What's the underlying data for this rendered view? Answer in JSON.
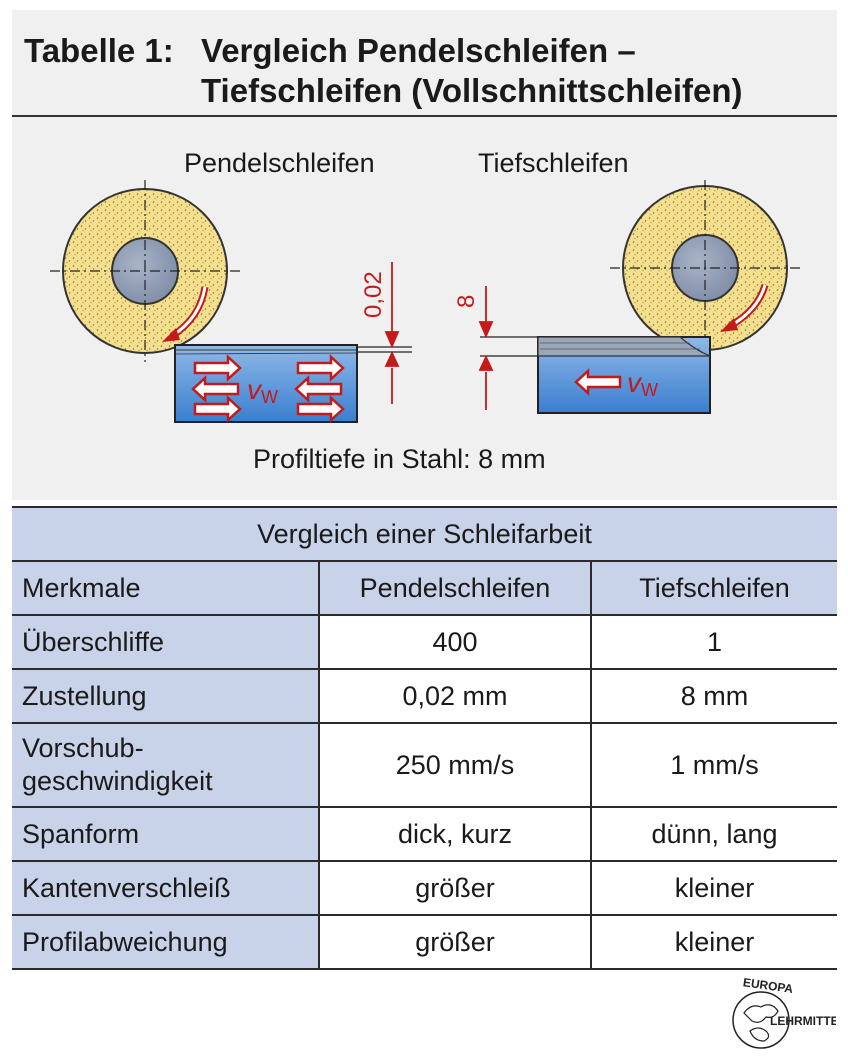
{
  "title": {
    "label": "Tabelle 1:",
    "line1": "Vergleich Pendelschleifen –",
    "line2": "Tiefschleifen (Vollschnittschleifen)"
  },
  "figure": {
    "pendel_caption": "Pendelschleifen",
    "tief_caption": "Tiefschleifen",
    "depth_pendel": "0,02",
    "depth_tief": "8",
    "feed_v": "v",
    "feed_sub": "W",
    "profile_caption": "Profiltiefe in Stahl: 8 mm"
  },
  "table": {
    "caption": "Vergleich einer Schleifarbeit",
    "headers": [
      "Merkmale",
      "Pendelschleifen",
      "Tiefschleifen"
    ],
    "rows": [
      {
        "feature": "Überschliffe",
        "pendel": "400",
        "tief": "1"
      },
      {
        "feature": "Zustellung",
        "pendel": "0,02 mm",
        "tief": "8 mm"
      },
      {
        "feature_l1": "Vorschub-",
        "feature_l2": "geschwindigkeit",
        "pendel": "250 mm/s",
        "tief": "1 mm/s"
      },
      {
        "feature": "Spanform",
        "pendel": "dick, kurz",
        "tief": "dünn, lang"
      },
      {
        "feature": "Kantenverschleiß",
        "pendel": "größer",
        "tief": "kleiner"
      },
      {
        "feature": "Profilabweichung",
        "pendel": "größer",
        "tief": "kleiner"
      }
    ]
  },
  "logo": {
    "top_text": "EUROPA",
    "right_text": "LEHRMITTEL"
  }
}
